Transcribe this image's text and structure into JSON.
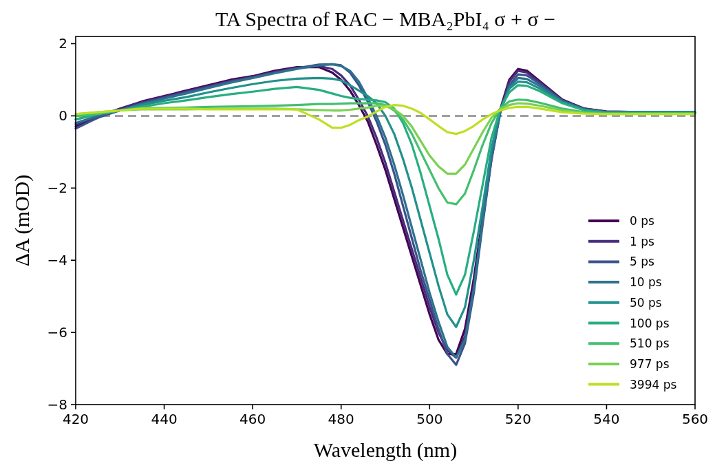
{
  "chart_data": {
    "type": "line",
    "title": "TA Spectra of RAC − MBA₂PbI₄  σ + σ −",
    "xlabel": "Wavelength (nm)",
    "ylabel": "ΔA (mOD)",
    "x": [
      420,
      425,
      430,
      435,
      440,
      445,
      450,
      455,
      460,
      465,
      470,
      475,
      478,
      480,
      482,
      484,
      486,
      488,
      490,
      492,
      494,
      496,
      498,
      500,
      502,
      504,
      506,
      508,
      510,
      512,
      514,
      516,
      518,
      520,
      522,
      525,
      530,
      535,
      540,
      550,
      560
    ],
    "series": [
      {
        "name": "0 ps",
        "color": "#440154",
        "values": [
          -0.3,
          -0.05,
          0.2,
          0.4,
          0.55,
          0.7,
          0.85,
          1.0,
          1.1,
          1.25,
          1.35,
          1.35,
          1.2,
          1.0,
          0.7,
          0.3,
          -0.15,
          -0.8,
          -1.5,
          -2.3,
          -3.1,
          -3.9,
          -4.7,
          -5.5,
          -6.2,
          -6.6,
          -6.6,
          -5.9,
          -4.5,
          -2.8,
          -1.1,
          0.2,
          1.0,
          1.3,
          1.25,
          0.95,
          0.45,
          0.2,
          0.12,
          0.1,
          0.1
        ]
      },
      {
        "name": "1 ps",
        "color": "#472d7b",
        "values": [
          -0.25,
          0.0,
          0.2,
          0.38,
          0.53,
          0.68,
          0.82,
          0.97,
          1.08,
          1.22,
          1.33,
          1.38,
          1.3,
          1.12,
          0.85,
          0.45,
          0.0,
          -0.6,
          -1.3,
          -2.1,
          -2.9,
          -3.7,
          -4.5,
          -5.3,
          -6.0,
          -6.5,
          -6.7,
          -6.1,
          -4.7,
          -2.9,
          -1.2,
          0.15,
          0.95,
          1.25,
          1.2,
          0.92,
          0.43,
          0.2,
          0.12,
          0.1,
          0.1
        ]
      },
      {
        "name": "5 ps",
        "color": "#3b528b",
        "values": [
          -0.35,
          -0.05,
          0.15,
          0.35,
          0.5,
          0.65,
          0.8,
          0.95,
          1.07,
          1.2,
          1.32,
          1.42,
          1.43,
          1.4,
          1.2,
          0.85,
          0.4,
          -0.15,
          -0.8,
          -1.6,
          -2.5,
          -3.4,
          -4.3,
          -5.1,
          -5.9,
          -6.6,
          -6.9,
          -6.3,
          -4.9,
          -3.0,
          -1.2,
          0.1,
          0.85,
          1.15,
          1.12,
          0.88,
          0.42,
          0.18,
          0.1,
          0.1,
          0.1
        ]
      },
      {
        "name": "10 ps",
        "color": "#2c728e",
        "values": [
          -0.2,
          0.0,
          0.15,
          0.33,
          0.48,
          0.62,
          0.77,
          0.92,
          1.05,
          1.18,
          1.3,
          1.4,
          1.43,
          1.38,
          1.25,
          0.95,
          0.5,
          0.0,
          -0.6,
          -1.35,
          -2.2,
          -3.1,
          -4.0,
          -4.9,
          -5.7,
          -6.4,
          -6.7,
          -6.2,
          -4.8,
          -2.9,
          -1.1,
          0.1,
          0.8,
          1.05,
          1.02,
          0.82,
          0.4,
          0.18,
          0.1,
          0.1,
          0.1
        ]
      },
      {
        "name": "50 ps",
        "color": "#21918c",
        "values": [
          -0.1,
          0.05,
          0.15,
          0.3,
          0.42,
          0.52,
          0.65,
          0.77,
          0.88,
          0.97,
          1.03,
          1.05,
          1.03,
          0.98,
          0.85,
          0.7,
          0.55,
          0.35,
          0.0,
          -0.5,
          -1.2,
          -2.0,
          -2.9,
          -3.8,
          -4.7,
          -5.5,
          -5.85,
          -5.3,
          -4.0,
          -2.5,
          -0.9,
          0.2,
          0.75,
          0.95,
          0.93,
          0.75,
          0.38,
          0.17,
          0.1,
          0.1,
          0.1
        ]
      },
      {
        "name": "100 ps",
        "color": "#28ae80",
        "values": [
          -0.1,
          0.05,
          0.15,
          0.25,
          0.35,
          0.43,
          0.52,
          0.6,
          0.67,
          0.75,
          0.8,
          0.72,
          0.62,
          0.55,
          0.5,
          0.47,
          0.45,
          0.43,
          0.38,
          0.2,
          -0.2,
          -0.8,
          -1.6,
          -2.5,
          -3.4,
          -4.4,
          -4.95,
          -4.4,
          -3.2,
          -1.9,
          -0.6,
          0.2,
          0.65,
          0.85,
          0.83,
          0.68,
          0.35,
          0.15,
          0.08,
          0.08,
          0.08
        ]
      },
      {
        "name": "510 ps",
        "color": "#44bf70",
        "values": [
          0.0,
          0.05,
          0.15,
          0.22,
          0.22,
          0.23,
          0.25,
          0.26,
          0.27,
          0.28,
          0.3,
          0.33,
          0.33,
          0.34,
          0.35,
          0.35,
          0.35,
          0.35,
          0.3,
          0.15,
          -0.1,
          -0.5,
          -1.0,
          -1.5,
          -2.0,
          -2.4,
          -2.45,
          -2.15,
          -1.5,
          -0.8,
          -0.2,
          0.2,
          0.4,
          0.45,
          0.44,
          0.36,
          0.2,
          0.1,
          0.07,
          0.07,
          0.07
        ]
      },
      {
        "name": "977 ps",
        "color": "#7ad151",
        "values": [
          0.05,
          0.1,
          0.15,
          0.18,
          0.18,
          0.18,
          0.19,
          0.2,
          0.2,
          0.2,
          0.18,
          0.16,
          0.15,
          0.15,
          0.17,
          0.2,
          0.23,
          0.28,
          0.28,
          0.18,
          0.0,
          -0.3,
          -0.7,
          -1.1,
          -1.4,
          -1.6,
          -1.6,
          -1.35,
          -0.9,
          -0.45,
          -0.05,
          0.2,
          0.3,
          0.35,
          0.34,
          0.28,
          0.15,
          0.08,
          0.05,
          0.05,
          0.05
        ]
      },
      {
        "name": "3994 ps",
        "color": "#bddf26",
        "values": [
          0.05,
          0.1,
          0.15,
          0.2,
          0.2,
          0.2,
          0.18,
          0.18,
          0.18,
          0.18,
          0.18,
          -0.1,
          -0.33,
          -0.33,
          -0.25,
          -0.12,
          -0.02,
          0.12,
          0.25,
          0.3,
          0.28,
          0.2,
          0.08,
          -0.1,
          -0.28,
          -0.45,
          -0.5,
          -0.42,
          -0.28,
          -0.1,
          0.05,
          0.15,
          0.22,
          0.25,
          0.25,
          0.2,
          0.1,
          0.06,
          0.05,
          0.05,
          0.05
        ]
      }
    ],
    "xlim": [
      420,
      560
    ],
    "xticks": [
      420,
      440,
      460,
      480,
      500,
      520,
      540,
      560
    ],
    "ylim": [
      -8,
      2.2
    ],
    "yticks": [
      {
        "value": -8,
        "label": "−8"
      },
      {
        "value": -6,
        "label": "−6"
      },
      {
        "value": -4,
        "label": "−4"
      },
      {
        "value": -2,
        "label": "−2"
      },
      0,
      2
    ],
    "ref_lines": [
      {
        "axis": "y",
        "value": 0,
        "color": "#a0a0a0",
        "line_style": "dashed"
      }
    ],
    "legend": "bottom right",
    "grid": false
  }
}
